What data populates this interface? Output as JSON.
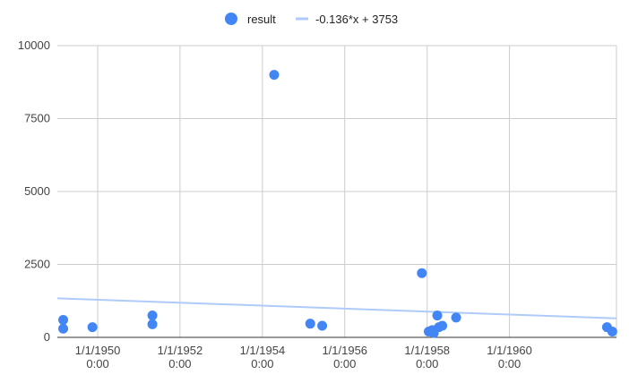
{
  "chart_data": {
    "type": "scatter",
    "title": "",
    "xlabel": "",
    "ylabel": "",
    "legend_position": "top",
    "grid": true,
    "x_axis": {
      "kind": "date",
      "range": [
        "1949-01-08",
        "1962-08-07"
      ],
      "ticks": [
        {
          "date": "1950-01-01",
          "line1": "1/1/1950",
          "line2": "0:00"
        },
        {
          "date": "1952-01-01",
          "line1": "1/1/1952",
          "line2": "0:00"
        },
        {
          "date": "1954-01-01",
          "line1": "1/1/1954",
          "line2": "0:00"
        },
        {
          "date": "1956-01-01",
          "line1": "1/1/1956",
          "line2": "0:00"
        },
        {
          "date": "1958-01-01",
          "line1": "1/1/1958",
          "line2": "0:00"
        },
        {
          "date": "1960-01-01",
          "line1": "1/1/1960",
          "line2": "0:00"
        }
      ]
    },
    "y_axis": {
      "range": [
        0,
        10000
      ],
      "ticks": [
        0,
        2500,
        5000,
        7500,
        10000
      ]
    },
    "series": [
      {
        "name": "result",
        "color": "#4285f4",
        "points": [
          {
            "x": "1949-03-01",
            "y": 600
          },
          {
            "x": "1949-03-01",
            "y": 300
          },
          {
            "x": "1949-11-15",
            "y": 350
          },
          {
            "x": "1951-05-01",
            "y": 750
          },
          {
            "x": "1951-05-01",
            "y": 450
          },
          {
            "x": "1954-04-15",
            "y": 9000
          },
          {
            "x": "1955-03-01",
            "y": 470
          },
          {
            "x": "1955-06-15",
            "y": 400
          },
          {
            "x": "1957-11-15",
            "y": 2200
          },
          {
            "x": "1958-01-15",
            "y": 200
          },
          {
            "x": "1958-02-15",
            "y": 250
          },
          {
            "x": "1958-03-01",
            "y": 150
          },
          {
            "x": "1958-04-01",
            "y": 750
          },
          {
            "x": "1958-04-15",
            "y": 350
          },
          {
            "x": "1958-05-15",
            "y": 400
          },
          {
            "x": "1958-09-15",
            "y": 680
          },
          {
            "x": "1962-05-15",
            "y": 350
          },
          {
            "x": "1962-07-01",
            "y": 200
          }
        ]
      }
    ],
    "trendline": {
      "name": "-0.136*x + 3753",
      "color": "#aecbfa",
      "from": {
        "x": "1949-01-08",
        "y": 1340
      },
      "to": {
        "x": "1962-08-07",
        "y": 650
      }
    }
  }
}
